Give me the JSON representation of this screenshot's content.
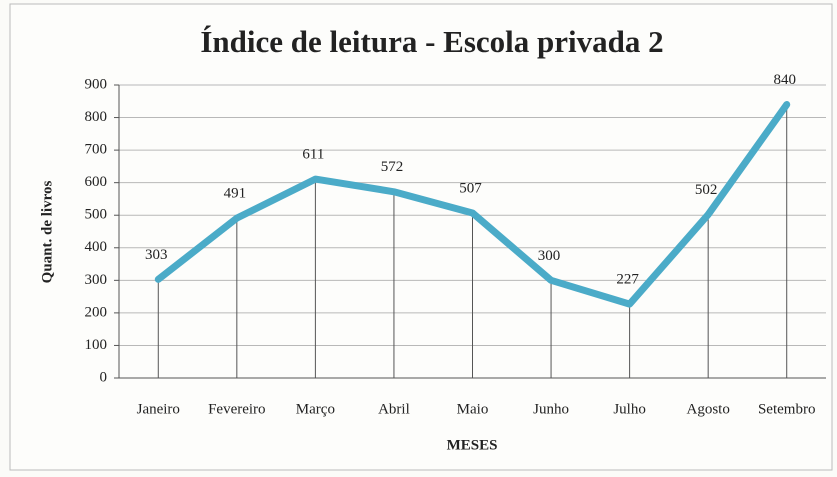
{
  "chart_data": {
    "type": "line",
    "title": "Índice de leitura - Escola privada 2",
    "x_label": "MESES",
    "y_label": "Quant. de livros",
    "categories": [
      "Janeiro",
      "Fevereiro",
      "Março",
      "Abril",
      "Maio",
      "Junho",
      "Julho",
      "Agosto",
      "Setembro"
    ],
    "values": [
      303,
      491,
      611,
      572,
      507,
      300,
      227,
      502,
      840
    ],
    "color": "#4babc8",
    "ylim": [
      0,
      900
    ],
    "yticks": [
      0,
      100,
      200,
      300,
      400,
      500,
      600,
      700,
      800,
      900
    ],
    "grid": true
  }
}
